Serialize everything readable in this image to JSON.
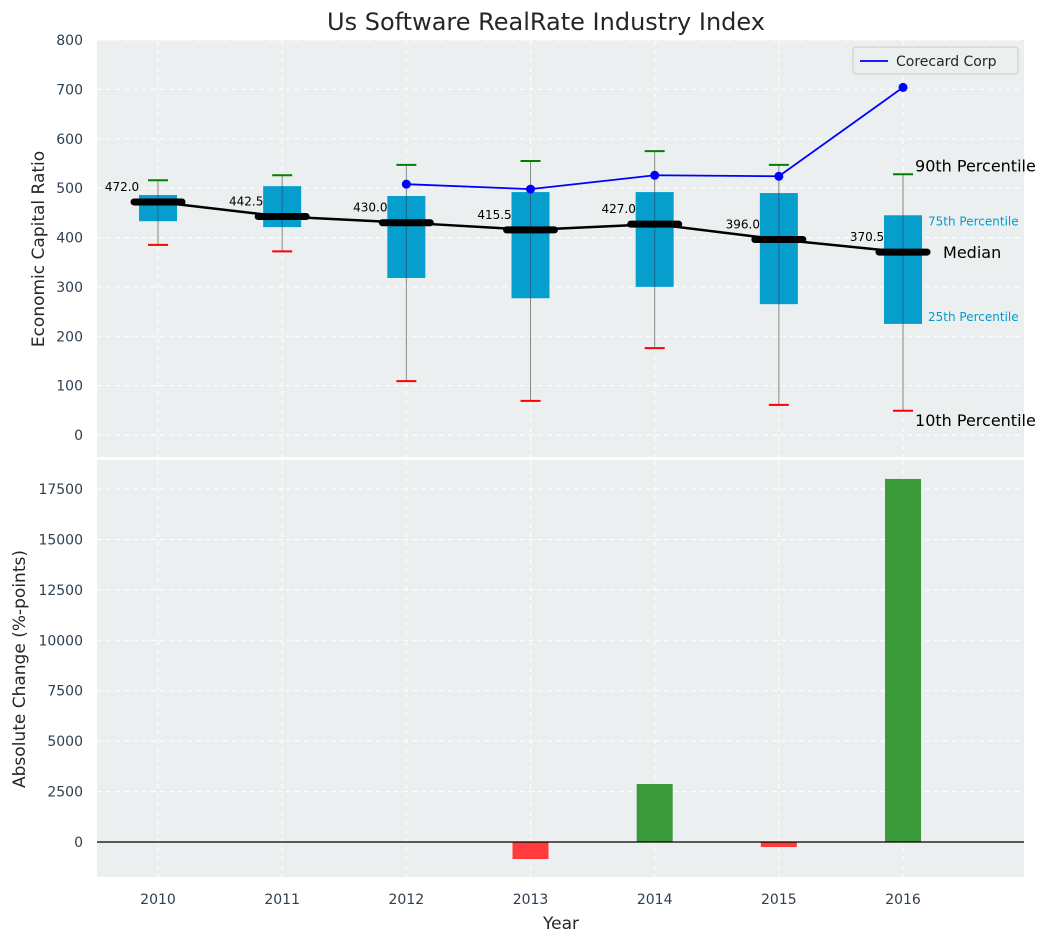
{
  "chart_data": [
    {
      "type": "box",
      "title": "Us Software RealRate Industry Index",
      "xlabel": "",
      "ylabel": "Economic Capital Ratio",
      "ylim": [
        0,
        800
      ],
      "yticks": [
        0,
        100,
        200,
        300,
        400,
        500,
        600,
        700,
        800
      ],
      "grid": true,
      "categories": [
        "2010",
        "2011",
        "2012",
        "2013",
        "2014",
        "2015",
        "2016"
      ],
      "p10": [
        385,
        372,
        109,
        69,
        176,
        61,
        49
      ],
      "p25": [
        433,
        421,
        318,
        277,
        300,
        265,
        225
      ],
      "median": [
        472.0,
        442.5,
        430.0,
        415.5,
        427.0,
        396.0,
        370.5
      ],
      "p75": [
        486,
        504,
        484,
        492,
        492,
        490,
        445
      ],
      "p90": [
        516,
        526,
        547,
        555,
        575,
        547,
        528
      ],
      "median_labels": [
        "472.0",
        "442.5",
        "430.0",
        "415.5",
        "427.0",
        "396.0",
        "370.5"
      ],
      "series": [
        {
          "name": "Corecard Corp",
          "color": "#0000ff",
          "values": [
            null,
            null,
            508,
            498,
            526,
            524,
            704
          ]
        }
      ],
      "legend": {
        "position": "top-right",
        "entries": [
          "Corecard Corp"
        ]
      },
      "annotations": {
        "p90": "90th Percentile",
        "p75": "75th Percentile",
        "median": "Median",
        "p25": "25th Percentile",
        "p10": "10th Percentile"
      },
      "colors": {
        "box": "#009ccc",
        "p90": "#008000",
        "p10": "#ff0000",
        "median": "#000000"
      }
    },
    {
      "type": "bar",
      "title": "",
      "xlabel": "Year",
      "ylabel": "Absolute Change (%-points)",
      "ylim": [
        -1735,
        18940
      ],
      "yticks": [
        0,
        2500,
        5000,
        7500,
        10000,
        12500,
        15000,
        17500
      ],
      "ytick_labels": [
        "0",
        "2500",
        "5000",
        "7500",
        "10000",
        "12500",
        "15000",
        "17500"
      ],
      "grid": true,
      "categories": [
        "2010",
        "2011",
        "2012",
        "2013",
        "2014",
        "2015",
        "2016"
      ],
      "values": [
        0,
        0,
        0,
        -843,
        2875,
        -248,
        18000
      ],
      "colors": {
        "positive": "#3a9a3a",
        "negative": "#ff3b3b"
      }
    }
  ]
}
